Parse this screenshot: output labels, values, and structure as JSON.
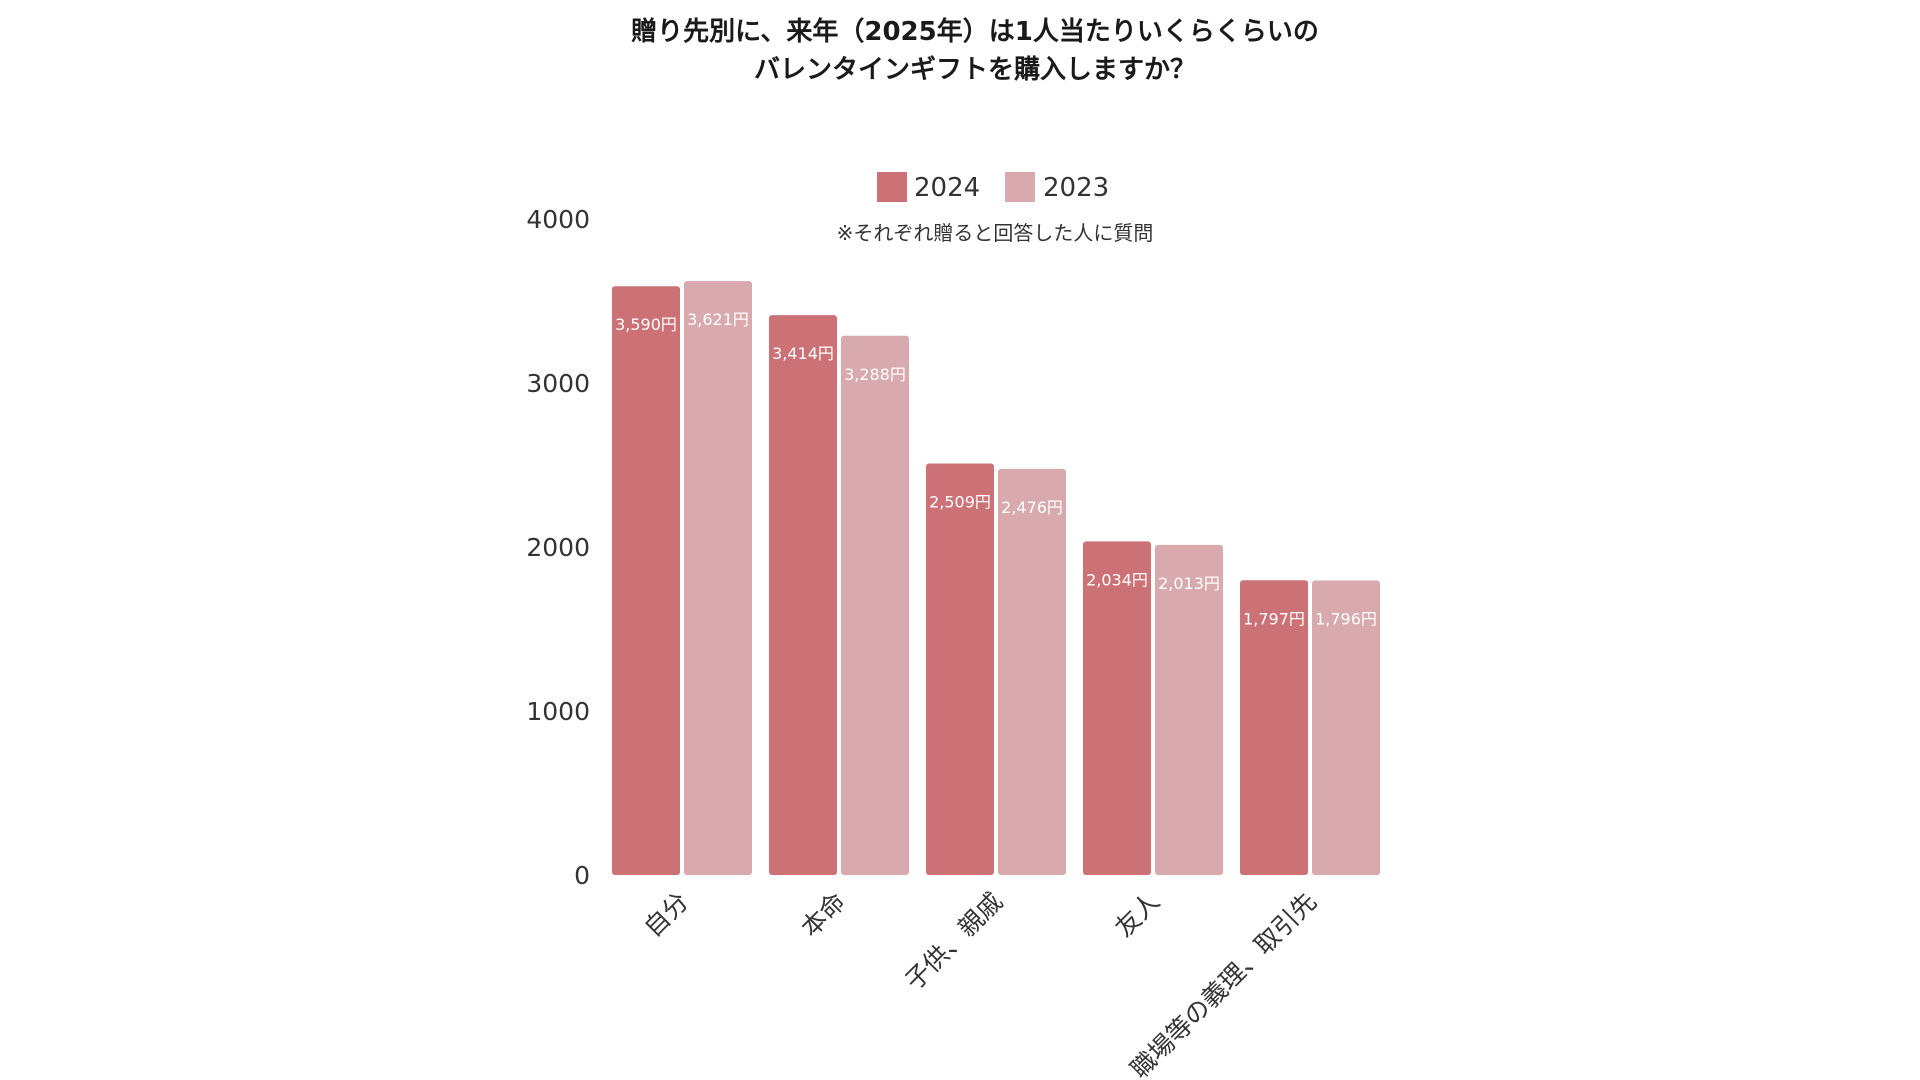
{
  "chart_data": {
    "type": "bar",
    "title_lines": [
      "贈り先別に、来年（2025年）は1人当たりいくらくらいの",
      "バレンタインギフトを購入しますか？"
    ],
    "note": "※それぞれ贈ると回答した人に質問",
    "categories": [
      "自分",
      "本命",
      "子供、親戚",
      "友人",
      "職場等の義理、取引先"
    ],
    "series": [
      {
        "name": "2024",
        "color": "#cc7277",
        "values": [
          3590,
          3414,
          2509,
          2034,
          1797
        ],
        "labels": [
          "3,590円",
          "3,414円",
          "2,509円",
          "2,034円",
          "1,797円"
        ]
      },
      {
        "name": "2023",
        "color": "#d8aaad",
        "values": [
          3621,
          3288,
          2476,
          2013,
          1796
        ],
        "labels": [
          "3,621円",
          "3,288円",
          "2,476円",
          "2,013円",
          "1,796円"
        ]
      }
    ],
    "yticks": [
      "0",
      "1000",
      "2000",
      "3000",
      "4000"
    ],
    "ylim": [
      0,
      4000
    ],
    "grid": false,
    "legend_position": "top-center"
  }
}
